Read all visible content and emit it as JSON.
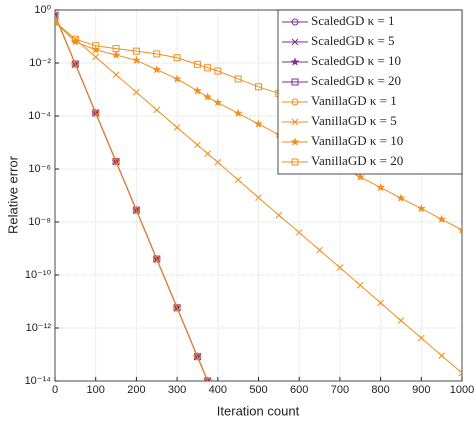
{
  "chart_data": {
    "type": "line",
    "xlabel": "Iteration count",
    "ylabel": "Relative error",
    "x": [
      0,
      50,
      100,
      150,
      200,
      250,
      300,
      350,
      375,
      400,
      450,
      500,
      550,
      600,
      650,
      700,
      750,
      800,
      850,
      900,
      950,
      1000
    ],
    "series": [
      {
        "name": "ScaledGD κ = 1",
        "color": "#7e2f8e",
        "marker": "circle",
        "values": [
          0.63,
          0.0091,
          0.00013,
          1.9e-06,
          2.8e-08,
          4e-10,
          5.8e-12,
          8.3e-14,
          1e-14,
          null,
          null,
          null,
          null,
          null,
          null,
          null,
          null,
          null,
          null,
          null,
          null,
          null
        ]
      },
      {
        "name": "ScaledGD κ = 5",
        "color": "#7e2f8e",
        "marker": "x",
        "values": [
          0.63,
          0.0091,
          0.00013,
          1.9e-06,
          2.8e-08,
          4e-10,
          5.8e-12,
          8.3e-14,
          1e-14,
          null,
          null,
          null,
          null,
          null,
          null,
          null,
          null,
          null,
          null,
          null,
          null,
          null
        ]
      },
      {
        "name": "ScaledGD κ = 10",
        "color": "#7e2f8e",
        "marker": "star",
        "values": [
          0.63,
          0.0091,
          0.00013,
          1.9e-06,
          2.8e-08,
          4e-10,
          5.8e-12,
          8.3e-14,
          1e-14,
          null,
          null,
          null,
          null,
          null,
          null,
          null,
          null,
          null,
          null,
          null,
          null,
          null
        ]
      },
      {
        "name": "ScaledGD κ = 20",
        "color": "#7e2f8e",
        "marker": "square",
        "values": [
          0.63,
          0.0091,
          0.00013,
          1.9e-06,
          2.8e-08,
          4e-10,
          5.8e-12,
          8.3e-14,
          1e-14,
          null,
          null,
          null,
          null,
          null,
          null,
          null,
          null,
          null,
          null,
          null,
          null,
          null
        ]
      },
      {
        "name": "VanillaGD κ = 1",
        "color": "#f28e1c",
        "marker": "circle",
        "values": [
          0.63,
          0.0091,
          0.00013,
          1.9e-06,
          2.8e-08,
          4e-10,
          5.8e-12,
          8.3e-14,
          1e-14,
          null,
          null,
          null,
          null,
          null,
          null,
          null,
          null,
          null,
          null,
          null,
          null,
          null
        ]
      },
      {
        "name": "VanillaGD κ = 5",
        "color": "#f28e1c",
        "marker": "x",
        "values": [
          0.355,
          0.0776,
          0.0168,
          0.0036,
          0.00079,
          0.00017,
          3.7e-05,
          8.1e-06,
          3.8e-06,
          1.8e-06,
          3.9e-07,
          8.3e-08,
          1.8e-08,
          4e-09,
          8.7e-10,
          1.9e-10,
          4.1e-11,
          8.9e-12,
          1.9e-12,
          4.2e-13,
          9.1e-14,
          2e-14
        ]
      },
      {
        "name": "VanillaGD κ = 10",
        "color": "#f28e1c",
        "marker": "star",
        "values": [
          0.355,
          0.063,
          0.0316,
          0.02,
          0.0126,
          0.0056,
          0.0025,
          0.00089,
          0.00052,
          0.00032,
          0.000126,
          5e-05,
          2e-05,
          7.9e-06,
          3.2e-06,
          1.26e-06,
          5e-07,
          2e-07,
          7.9e-08,
          3.2e-08,
          1.26e-08,
          5e-09
        ]
      },
      {
        "name": "VanillaGD κ = 20",
        "color": "#f28e1c",
        "marker": "square",
        "values": [
          0.355,
          0.079,
          0.045,
          0.035,
          0.028,
          0.022,
          0.0158,
          0.0089,
          0.0066,
          0.005,
          0.0025,
          0.00126,
          0.00071,
          0.0004,
          0.0002,
          0.0001,
          5.6e-05,
          3.2e-05,
          1.8e-05,
          1e-05,
          5.6e-06,
          3.2e-06
        ]
      }
    ],
    "xlim": [
      0,
      1000
    ],
    "xticks": [
      0,
      100,
      200,
      300,
      400,
      500,
      600,
      700,
      800,
      900,
      1000
    ],
    "ylim": [
      1e-14,
      1
    ],
    "ylog": true,
    "yticks": [
      {
        "value": 1e-14,
        "label": "10⁻¹⁴"
      },
      {
        "value": 1e-12,
        "label": "10⁻¹²"
      },
      {
        "value": 1e-10,
        "label": "10⁻¹⁰"
      },
      {
        "value": 1e-08,
        "label": "10⁻⁸"
      },
      {
        "value": 1e-06,
        "label": "10⁻⁶"
      },
      {
        "value": 0.0001,
        "label": "10⁻⁴"
      },
      {
        "value": 0.01,
        "label": "10⁻²"
      },
      {
        "value": 1,
        "label": "10⁰"
      }
    ],
    "grid": true,
    "legend": "upper right"
  }
}
